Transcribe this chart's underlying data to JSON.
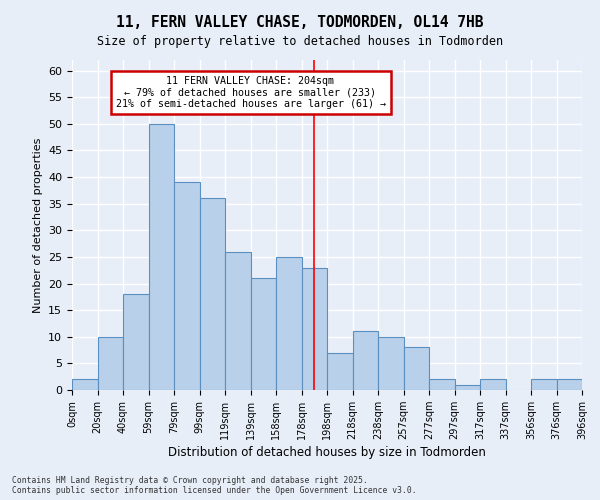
{
  "title_line1": "11, FERN VALLEY CHASE, TODMORDEN, OL14 7HB",
  "title_line2": "Size of property relative to detached houses in Todmorden",
  "xlabel": "Distribution of detached houses by size in Todmorden",
  "ylabel": "Number of detached properties",
  "footer": "Contains HM Land Registry data © Crown copyright and database right 2025.\nContains public sector information licensed under the Open Government Licence v3.0.",
  "bin_labels": [
    "0sqm",
    "20sqm",
    "40sqm",
    "59sqm",
    "79sqm",
    "99sqm",
    "119sqm",
    "139sqm",
    "158sqm",
    "178sqm",
    "198sqm",
    "218sqm",
    "238sqm",
    "257sqm",
    "277sqm",
    "297sqm",
    "317sqm",
    "337sqm",
    "356sqm",
    "376sqm",
    "396sqm"
  ],
  "bar_heights": [
    2,
    10,
    18,
    50,
    39,
    36,
    26,
    21,
    25,
    23,
    7,
    11,
    10,
    8,
    2,
    1,
    2,
    0,
    2,
    2
  ],
  "bar_color": "#b8d0ea",
  "bar_edge_color": "#5a8fc2",
  "background_color": "#e8eef8",
  "grid_color": "#ffffff",
  "red_line_bin": 9,
  "annotation_title": "11 FERN VALLEY CHASE: 204sqm",
  "annotation_line2": "← 79% of detached houses are smaller (233)",
  "annotation_line3": "21% of semi-detached houses are larger (61) →",
  "annotation_box_facecolor": "#ffffff",
  "annotation_box_edgecolor": "#cc0000",
  "ylim_max": 62,
  "yticks": [
    0,
    5,
    10,
    15,
    20,
    25,
    30,
    35,
    40,
    45,
    50,
    55,
    60
  ]
}
